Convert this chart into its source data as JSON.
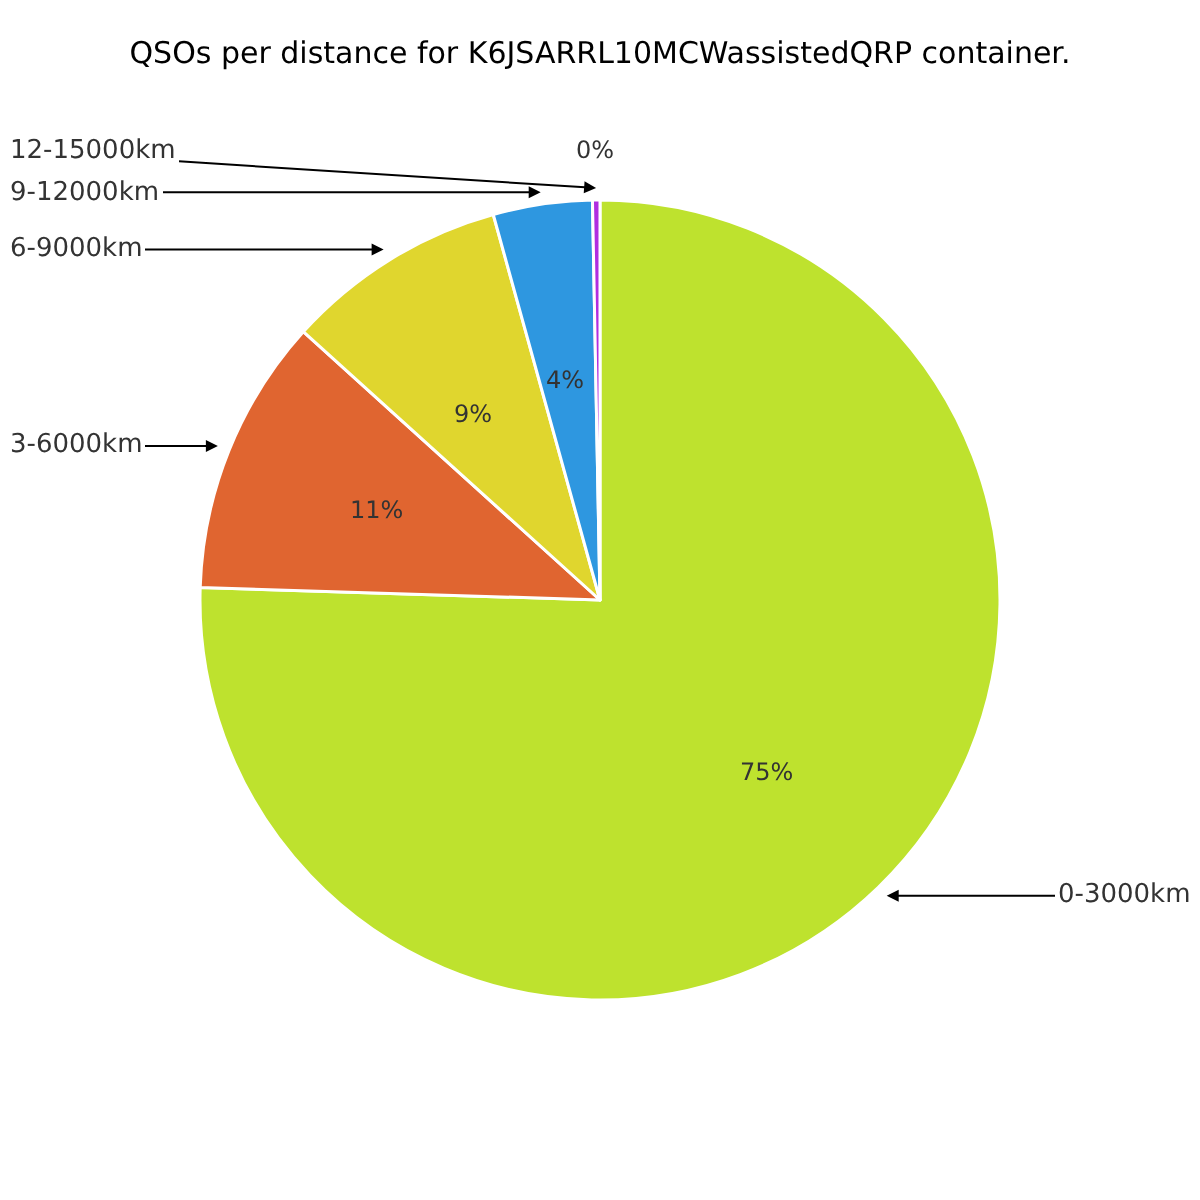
{
  "chart_data": {
    "type": "pie",
    "title": "QSOs per distance for K6JSARRL10MCWassistedQRP container.",
    "categories": [
      "0-3000km",
      "3-6000km",
      "6-9000km",
      "9-12000km",
      "12-15000km"
    ],
    "values": [
      75.5,
      11.2,
      9.0,
      4.0,
      0.3
    ],
    "value_labels": [
      "75%",
      "11%",
      "9%",
      "4%",
      "0%"
    ],
    "colors": [
      "#bee22e",
      "#e06530",
      "#e0d62e",
      "#2e97e0",
      "#b02ee0"
    ],
    "legend": false
  }
}
